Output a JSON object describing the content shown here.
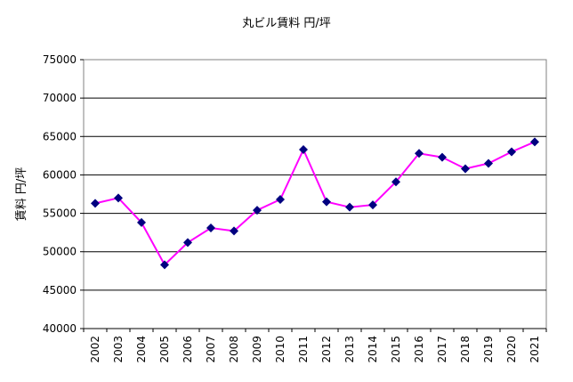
{
  "chart_data": {
    "type": "line",
    "title": "丸ビル賃料 円/坪",
    "xlabel": "",
    "ylabel": "賃料 円/坪",
    "categories": [
      "2002",
      "2003",
      "2004",
      "2005",
      "2006",
      "2007",
      "2008",
      "2009",
      "2010",
      "2011",
      "2012",
      "2013",
      "2014",
      "2015",
      "2016",
      "2017",
      "2018",
      "2019",
      "2020",
      "2021"
    ],
    "series": [
      {
        "values": [
          56300,
          57000,
          53800,
          48300,
          51200,
          53100,
          52700,
          55400,
          56800,
          63300,
          56500,
          55800,
          56100,
          59100,
          62800,
          62300,
          60800,
          61500,
          63000,
          64300
        ],
        "line_color": "#ff00ff",
        "marker_color": "#000080",
        "marker": "diamond"
      }
    ],
    "ylim": [
      40000,
      75000
    ],
    "yticks": [
      40000,
      45000,
      50000,
      55000,
      60000,
      65000,
      70000,
      75000
    ],
    "grid": true,
    "legend": "none"
  }
}
